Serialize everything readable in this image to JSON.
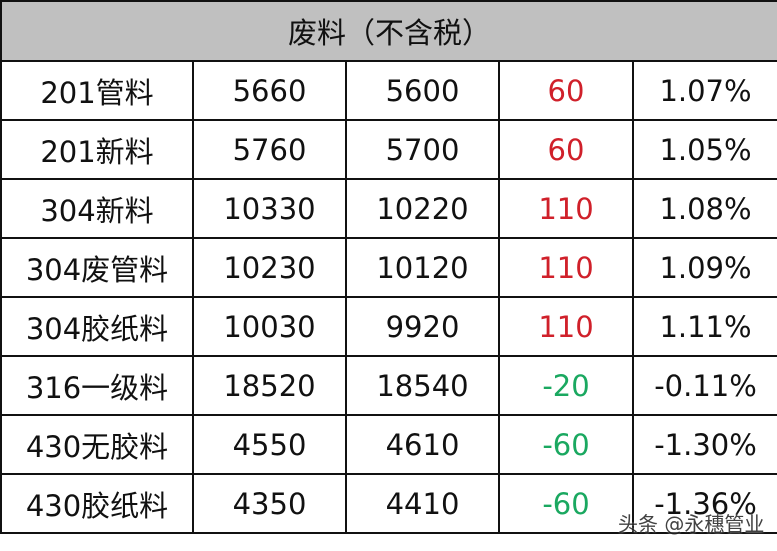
{
  "title": "废料（不含税）",
  "colors": {
    "up": "#d0202a",
    "down": "#1aa860",
    "header_bg": "#c0c0c0"
  },
  "rows": [
    {
      "name": "201管料",
      "v1": "5660",
      "v2": "5600",
      "change": "60",
      "pct": "1.07%",
      "dir": "up"
    },
    {
      "name": "201新料",
      "v1": "5760",
      "v2": "5700",
      "change": "60",
      "pct": "1.05%",
      "dir": "up"
    },
    {
      "name": "304新料",
      "v1": "10330",
      "v2": "10220",
      "change": "110",
      "pct": "1.08%",
      "dir": "up"
    },
    {
      "name": "304废管料",
      "v1": "10230",
      "v2": "10120",
      "change": "110",
      "pct": "1.09%",
      "dir": "up"
    },
    {
      "name": "304胶纸料",
      "v1": "10030",
      "v2": "9920",
      "change": "110",
      "pct": "1.11%",
      "dir": "up"
    },
    {
      "name": "316一级料",
      "v1": "18520",
      "v2": "18540",
      "change": "-20",
      "pct": "-0.11%",
      "dir": "down"
    },
    {
      "name": "430无胶料",
      "v1": "4550",
      "v2": "4610",
      "change": "-60",
      "pct": "-1.30%",
      "dir": "down"
    },
    {
      "name": "430胶纸料",
      "v1": "4350",
      "v2": "4410",
      "change": "-60",
      "pct": "-1.36%",
      "dir": "down"
    }
  ],
  "watermark": "头条 @永穗管业"
}
